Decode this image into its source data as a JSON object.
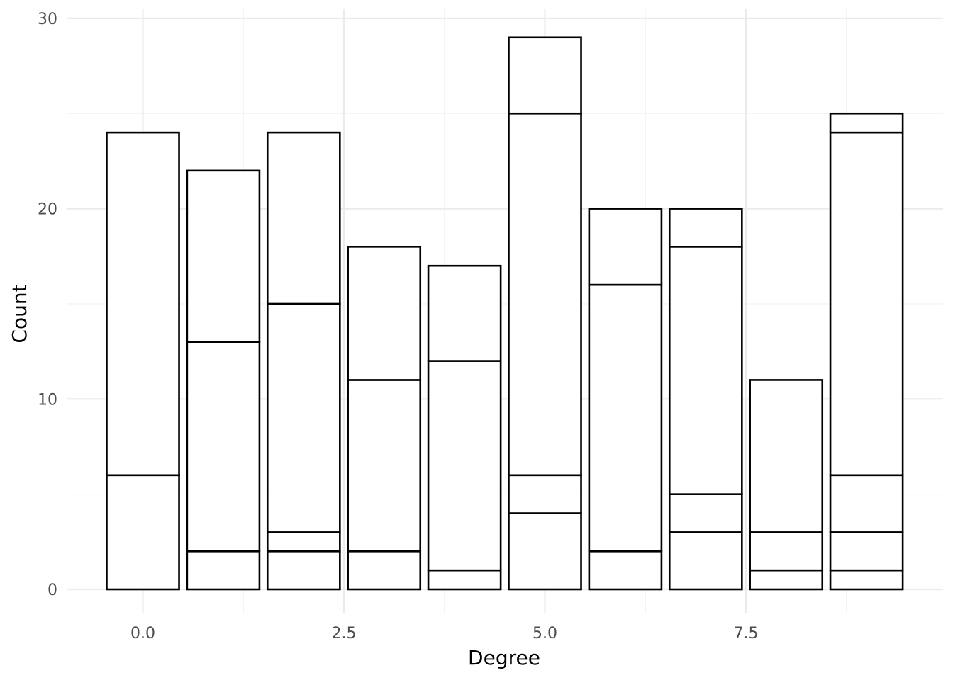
{
  "chart_data": {
    "type": "bar",
    "stacked": true,
    "title": "",
    "xlabel": "Degree",
    "ylabel": "Count",
    "xlim": [
      -0.9,
      9.5
    ],
    "ylim": [
      0,
      30
    ],
    "x_ticks": [
      0,
      2.5,
      5,
      7.5
    ],
    "x_tick_labels": [
      "0.0",
      "2.5",
      "5.0",
      "7.5"
    ],
    "x_minor_ticks": [
      1.25,
      3.75,
      6.25,
      8.75
    ],
    "y_ticks": [
      0,
      10,
      20,
      30
    ],
    "y_tick_labels": [
      "0",
      "10",
      "20",
      "30"
    ],
    "y_minor_ticks": [
      5,
      15,
      25
    ],
    "grid": true,
    "legend": "none",
    "bar_width": 0.9,
    "bars": [
      {
        "x": 0,
        "cumulative": [
          6,
          24
        ]
      },
      {
        "x": 1,
        "cumulative": [
          2,
          13,
          22
        ]
      },
      {
        "x": 2,
        "cumulative": [
          2,
          3,
          15,
          24
        ]
      },
      {
        "x": 3,
        "cumulative": [
          2,
          11,
          18
        ]
      },
      {
        "x": 4,
        "cumulative": [
          1,
          12,
          17
        ]
      },
      {
        "x": 5,
        "cumulative": [
          4,
          6,
          25,
          29
        ]
      },
      {
        "x": 6,
        "cumulative": [
          2,
          16,
          20
        ]
      },
      {
        "x": 7,
        "cumulative": [
          3,
          5,
          18,
          20
        ]
      },
      {
        "x": 8,
        "cumulative": [
          1,
          3,
          11
        ]
      },
      {
        "x": 9,
        "cumulative": [
          1,
          3,
          6,
          24,
          25
        ]
      }
    ]
  }
}
